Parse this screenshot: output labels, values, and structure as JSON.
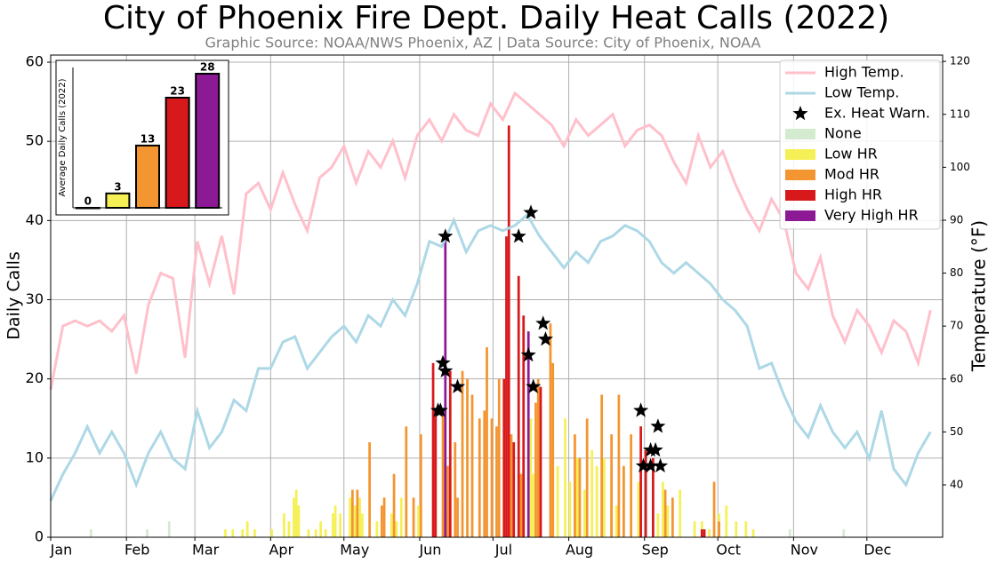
{
  "chart_data": [
    {
      "type": "bar",
      "title": "City of Phoenix Fire Dept. Daily Heat Calls (2022)",
      "subtitle": "Graphic Source: NOAA/NWS Phoenix, AZ | Data Source: City of Phoenix, NOAA",
      "y_label": "Daily Calls",
      "y2_label": "Temperature (°F)",
      "xlim": [
        0,
        365
      ],
      "xticks": [
        {
          "value": 0,
          "label": "Jan"
        },
        {
          "value": 31,
          "label": "Feb"
        },
        {
          "value": 59,
          "label": "Mar"
        },
        {
          "value": 90,
          "label": "Apr"
        },
        {
          "value": 120,
          "label": "May"
        },
        {
          "value": 151,
          "label": "Jun"
        },
        {
          "value": 181,
          "label": "Jul"
        },
        {
          "value": 212,
          "label": "Aug"
        },
        {
          "value": 243,
          "label": "Sep"
        },
        {
          "value": 273,
          "label": "Oct"
        },
        {
          "value": 304,
          "label": "Nov"
        },
        {
          "value": 334,
          "label": "Dec"
        }
      ],
      "ylim": [
        0,
        60.9
      ],
      "yticks": [
        0,
        10,
        20,
        30,
        40,
        50,
        60
      ],
      "y2lim": [
        30.1,
        121.2
      ],
      "y2ticks": [
        40,
        50,
        60,
        70,
        80,
        90,
        100,
        110,
        120
      ],
      "grid": true,
      "legend": "upper right",
      "series": [
        {
          "name": "High Temp.",
          "type": "line",
          "axis": "y2",
          "color": "#ffc0cb",
          "x": [
            0,
            5,
            10,
            15,
            20,
            25,
            30,
            35,
            40,
            45,
            50,
            55,
            60,
            65,
            70,
            75,
            80,
            85,
            90,
            95,
            100,
            105,
            110,
            115,
            120,
            125,
            130,
            135,
            140,
            145,
            150,
            155,
            160,
            165,
            170,
            175,
            180,
            185,
            190,
            195,
            200,
            205,
            210,
            215,
            220,
            225,
            230,
            235,
            240,
            245,
            250,
            255,
            260,
            265,
            270,
            275,
            280,
            285,
            290,
            295,
            300,
            305,
            310,
            315,
            320,
            325,
            330,
            335,
            340,
            345,
            350,
            355,
            360
          ],
          "values": [
            58,
            70,
            71,
            70,
            71,
            69,
            72,
            61,
            74,
            80,
            79,
            64,
            86,
            78,
            87,
            76,
            95,
            97,
            92,
            99,
            93,
            88,
            98,
            100,
            104,
            97,
            103,
            100,
            105,
            98,
            106,
            109,
            105,
            110,
            107,
            106,
            112,
            109,
            114,
            112,
            110,
            108,
            104,
            109,
            106,
            108,
            110,
            104,
            107,
            108,
            106,
            101,
            97,
            106,
            100,
            103,
            97,
            92,
            88,
            94,
            90,
            80,
            77,
            83,
            72,
            67,
            73,
            70,
            65,
            71,
            69,
            63,
            73
          ]
        },
        {
          "name": "Low Temp.",
          "type": "line",
          "axis": "y2",
          "color": "#add8e6",
          "x": [
            0,
            5,
            10,
            15,
            20,
            25,
            30,
            35,
            40,
            45,
            50,
            55,
            60,
            65,
            70,
            75,
            80,
            85,
            90,
            95,
            100,
            105,
            110,
            115,
            120,
            125,
            130,
            135,
            140,
            145,
            150,
            155,
            160,
            165,
            170,
            175,
            180,
            185,
            190,
            195,
            200,
            205,
            210,
            215,
            220,
            225,
            230,
            235,
            240,
            245,
            250,
            255,
            260,
            265,
            270,
            275,
            280,
            285,
            290,
            295,
            300,
            305,
            310,
            315,
            320,
            325,
            330,
            335,
            340,
            345,
            350,
            355,
            360
          ],
          "values": [
            37,
            42,
            46,
            51,
            46,
            50,
            46,
            40,
            46,
            50,
            45,
            43,
            54,
            47,
            50,
            56,
            54,
            62,
            62,
            67,
            68,
            62,
            65,
            68,
            70,
            67,
            72,
            70,
            75,
            72,
            78,
            86,
            85,
            90,
            84,
            88,
            89,
            88,
            89,
            91,
            87,
            84,
            81,
            84,
            82,
            86,
            87,
            89,
            88,
            86,
            82,
            80,
            82,
            80,
            78,
            75,
            73,
            70,
            62,
            63,
            57,
            52,
            49,
            55,
            50,
            47,
            50,
            45,
            54,
            43,
            40,
            46,
            50
          ]
        },
        {
          "name": "Ex. Heat Warn.",
          "type": "scatter",
          "color": "#000000",
          "x": [
            158,
            159,
            160,
            161,
            161,
            166,
            191,
            195,
            196,
            197,
            201,
            202,
            241,
            242,
            245,
            245,
            247,
            248,
            249
          ],
          "values": [
            16,
            16,
            22,
            38,
            21,
            19,
            38,
            23,
            41,
            19,
            27,
            25,
            16,
            9,
            11,
            9,
            11,
            14,
            9
          ]
        },
        {
          "name": "None",
          "type": "bar",
          "color": "#d4ebd0",
          "x": [
            16,
            39,
            48,
            302,
            324
          ],
          "values": [
            1,
            1,
            2,
            1,
            1
          ]
        },
        {
          "name": "Low HR",
          "type": "bar",
          "color": "#f5f056",
          "x": [
            71,
            74,
            78,
            80,
            83,
            90,
            95,
            97,
            99,
            100,
            101,
            105,
            108,
            110,
            112,
            115,
            116,
            118,
            122,
            124,
            126,
            127,
            133,
            139,
            141,
            143,
            150,
            157,
            160,
            187,
            193,
            196,
            197,
            205,
            207,
            210,
            212,
            215,
            218,
            221,
            223,
            226,
            229,
            231,
            240,
            248,
            250,
            252,
            257,
            263,
            266,
            269,
            273,
            276,
            280,
            284,
            287
          ],
          "values": [
            1,
            1,
            1,
            2,
            1,
            1,
            3,
            2,
            5,
            6,
            4,
            1,
            1,
            2,
            1,
            3,
            4,
            3,
            5,
            4,
            5,
            3,
            2,
            3,
            2,
            5,
            4,
            12,
            3,
            7,
            10,
            15,
            8,
            12,
            9,
            15,
            7,
            10,
            6,
            11,
            9,
            10,
            8,
            4,
            7,
            3,
            7,
            4,
            6,
            2,
            2,
            1,
            3,
            4,
            2,
            2,
            1
          ]
        },
        {
          "name": "Mod HR",
          "type": "bar",
          "color": "#f39530",
          "x": [
            123,
            125,
            130,
            135,
            136,
            140,
            145,
            148,
            151,
            160,
            162,
            165,
            166,
            168,
            170,
            172,
            175,
            177,
            178,
            180,
            182,
            183,
            188,
            192,
            198,
            199,
            204,
            205,
            214,
            216,
            219,
            225,
            229,
            232,
            234,
            237,
            251,
            254,
            271,
            273
          ],
          "values": [
            6,
            6,
            12,
            4,
            5,
            8,
            14,
            5,
            13,
            16,
            9,
            12,
            5,
            21,
            20,
            18,
            15,
            16,
            24,
            15,
            14,
            20,
            13,
            8,
            17,
            20,
            27,
            22,
            13,
            10,
            15,
            18,
            13,
            18,
            9,
            13,
            6,
            5,
            7,
            2
          ]
        },
        {
          "name": "High HR",
          "type": "bar",
          "color": "#d7191c",
          "x": [
            156,
            157,
            163,
            185,
            186,
            187,
            189,
            191,
            193,
            200,
            241,
            243,
            246,
            266,
            267
          ],
          "values": [
            22,
            16,
            21,
            20,
            38,
            52,
            12,
            33,
            28,
            19,
            14,
            11,
            10,
            1,
            1
          ]
        },
        {
          "name": "Very High HR",
          "type": "bar",
          "color": "#8b1a94",
          "x": [
            161,
            195
          ],
          "values": [
            38,
            26
          ]
        }
      ]
    },
    {
      "type": "bar",
      "y_label": "Average Daily Calls (2022)",
      "ylim": [
        0,
        29.3
      ],
      "values": [
        0,
        3,
        13,
        23,
        28
      ],
      "colors": [
        "#d4ebd0",
        "#f5f056",
        "#f39530",
        "#d7191c",
        "#8b1a94"
      ]
    }
  ]
}
